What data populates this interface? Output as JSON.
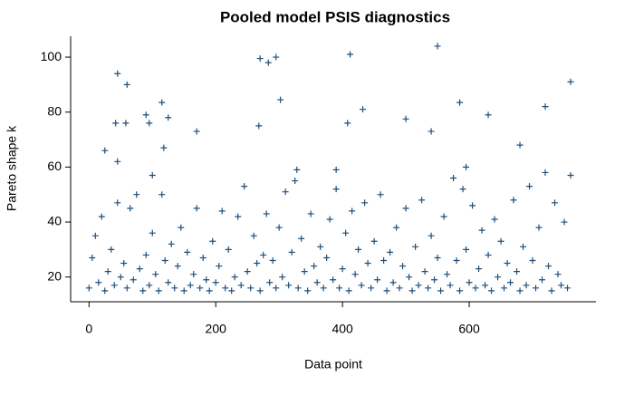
{
  "chart_data": {
    "type": "scatter",
    "title": "Pooled model PSIS diagnostics",
    "x_label": "Data point",
    "y_label": "Pareto shape k",
    "color": "#1f4e79",
    "xlim": [
      -29,
      800
    ],
    "ylim": [
      11,
      107.6
    ],
    "xticks": [
      0,
      200,
      400,
      600
    ],
    "yticks": [
      20,
      40,
      60,
      80,
      100
    ],
    "x": [
      0,
      5,
      10,
      15,
      20,
      25,
      30,
      35,
      40,
      45,
      50,
      55,
      60,
      65,
      70,
      75,
      80,
      85,
      90,
      95,
      100,
      105,
      110,
      115,
      120,
      125,
      130,
      135,
      140,
      145,
      150,
      155,
      160,
      165,
      170,
      175,
      180,
      185,
      190,
      195,
      200,
      205,
      210,
      215,
      220,
      225,
      230,
      235,
      240,
      245,
      250,
      255,
      260,
      265,
      270,
      275,
      280,
      285,
      290,
      295,
      300,
      305,
      310,
      315,
      320,
      325,
      330,
      335,
      340,
      345,
      350,
      355,
      360,
      365,
      370,
      375,
      380,
      385,
      390,
      395,
      400,
      405,
      410,
      415,
      420,
      425,
      430,
      435,
      440,
      445,
      450,
      455,
      460,
      465,
      470,
      475,
      480,
      485,
      490,
      495,
      500,
      505,
      510,
      515,
      520,
      525,
      530,
      535,
      540,
      545,
      550,
      555,
      560,
      565,
      570,
      575,
      580,
      585,
      590,
      595,
      600,
      605,
      610,
      615,
      620,
      625,
      630,
      635,
      640,
      645,
      650,
      655,
      660,
      665,
      670,
      675,
      680,
      685,
      690,
      695,
      700,
      705,
      710,
      715,
      720,
      725,
      730,
      735,
      740,
      745,
      750,
      755,
      760,
      42,
      45,
      45,
      25,
      58,
      60,
      90,
      95,
      100,
      115,
      118,
      125,
      170,
      268,
      270,
      283,
      295,
      302,
      328,
      390,
      408,
      412,
      432,
      500,
      540,
      550,
      585,
      595,
      630,
      680,
      720,
      760
    ],
    "values": [
      16,
      27,
      35,
      18,
      42,
      15,
      22,
      30,
      17,
      47,
      20,
      25,
      16,
      45,
      19,
      50,
      23,
      15,
      28,
      17,
      36,
      21,
      15,
      50,
      26,
      18,
      32,
      16,
      24,
      38,
      15,
      29,
      17,
      21,
      45,
      16,
      27,
      19,
      15,
      33,
      18,
      24,
      44,
      16,
      30,
      15,
      20,
      42,
      17,
      53,
      22,
      16,
      35,
      25,
      15,
      28,
      43,
      18,
      26,
      16,
      38,
      20,
      51,
      17,
      29,
      55,
      16,
      34,
      22,
      15,
      43,
      24,
      18,
      31,
      16,
      27,
      41,
      19,
      52,
      16,
      23,
      36,
      15,
      44,
      21,
      30,
      17,
      47,
      25,
      16,
      33,
      19,
      50,
      26,
      15,
      29,
      18,
      38,
      16,
      24,
      45,
      20,
      15,
      31,
      17,
      48,
      22,
      16,
      35,
      19,
      27,
      15,
      42,
      21,
      17,
      56,
      26,
      15,
      52,
      30,
      18,
      46,
      16,
      23,
      37,
      17,
      28,
      15,
      41,
      20,
      33,
      16,
      25,
      18,
      48,
      22,
      15,
      31,
      17,
      53,
      26,
      16,
      38,
      19,
      58,
      24,
      15,
      47,
      21,
      17,
      40,
      16,
      57,
      76,
      94,
      62,
      66,
      76,
      90,
      79,
      76,
      57,
      83.5,
      67,
      78,
      73,
      75,
      99.5,
      98,
      100,
      84.5,
      59,
      59,
      76,
      101,
      81,
      77.5,
      73,
      104,
      83.5,
      60,
      79,
      68,
      82,
      91
    ]
  }
}
